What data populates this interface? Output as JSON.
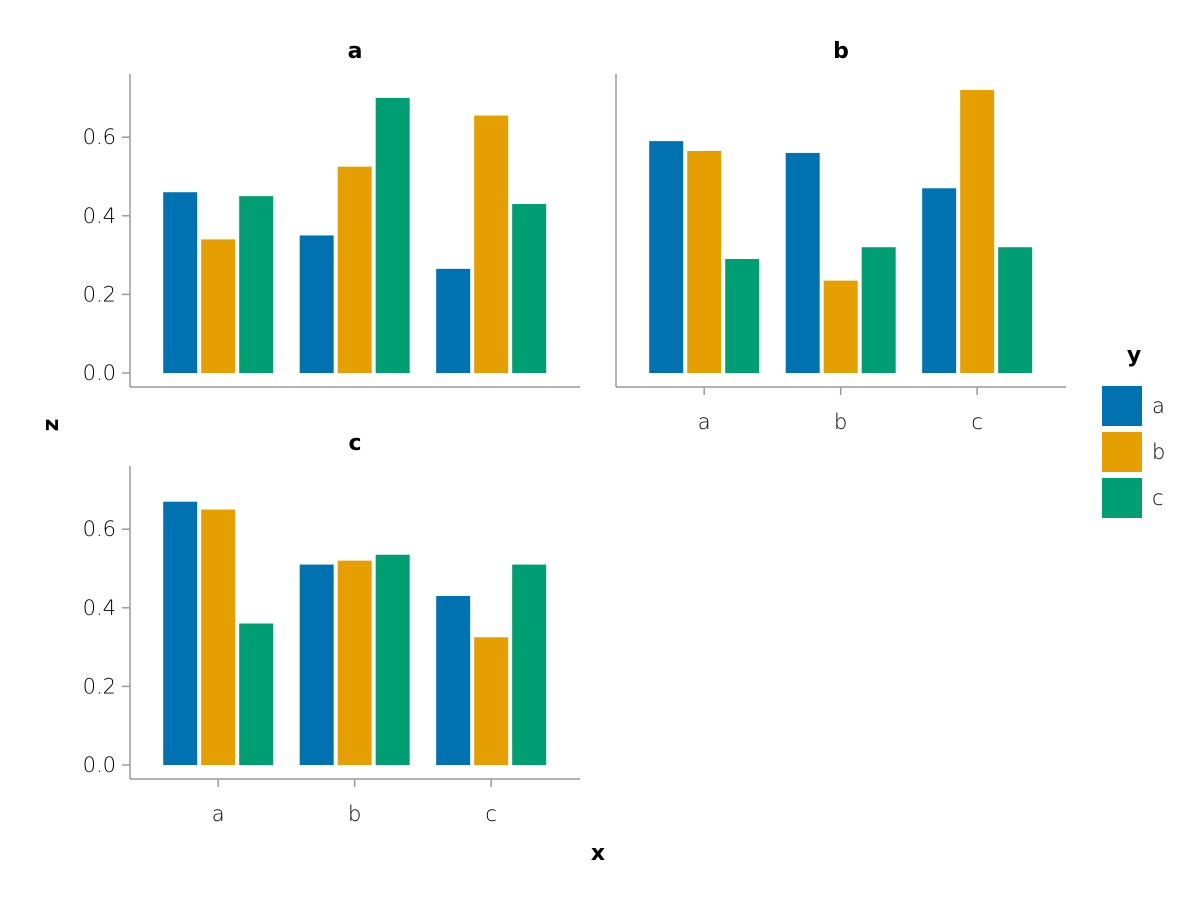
{
  "chart_data": {
    "type": "bar",
    "layout": "faceted grouped bar chart",
    "xlabel": "x",
    "ylabel": "z",
    "categories": [
      "a",
      "b",
      "c"
    ],
    "ylim": [
      0,
      0.76
    ],
    "yticks": [
      0.0,
      0.2,
      0.4,
      0.6
    ],
    "ytick_labels": [
      "0.0",
      "0.2",
      "0.4",
      "0.6"
    ],
    "grid": false,
    "legend": {
      "title": "y",
      "position": "right",
      "entries": [
        {
          "label": "a",
          "color": "#0072B2"
        },
        {
          "label": "b",
          "color": "#E69F00"
        },
        {
          "label": "c",
          "color": "#009E73"
        }
      ]
    },
    "facets": [
      {
        "title": "a",
        "series": [
          {
            "name": "a",
            "values": [
              0.46,
              0.35,
              0.265
            ]
          },
          {
            "name": "b",
            "values": [
              0.34,
              0.525,
              0.655
            ]
          },
          {
            "name": "c",
            "values": [
              0.45,
              0.7,
              0.43
            ]
          }
        ]
      },
      {
        "title": "b",
        "series": [
          {
            "name": "a",
            "values": [
              0.59,
              0.56,
              0.47
            ]
          },
          {
            "name": "b",
            "values": [
              0.565,
              0.235,
              0.72
            ]
          },
          {
            "name": "c",
            "values": [
              0.29,
              0.32,
              0.32
            ]
          }
        ]
      },
      {
        "title": "c",
        "series": [
          {
            "name": "a",
            "values": [
              0.67,
              0.51,
              0.43
            ]
          },
          {
            "name": "b",
            "values": [
              0.65,
              0.52,
              0.325
            ]
          },
          {
            "name": "c",
            "values": [
              0.36,
              0.535,
              0.51
            ]
          }
        ]
      }
    ]
  }
}
